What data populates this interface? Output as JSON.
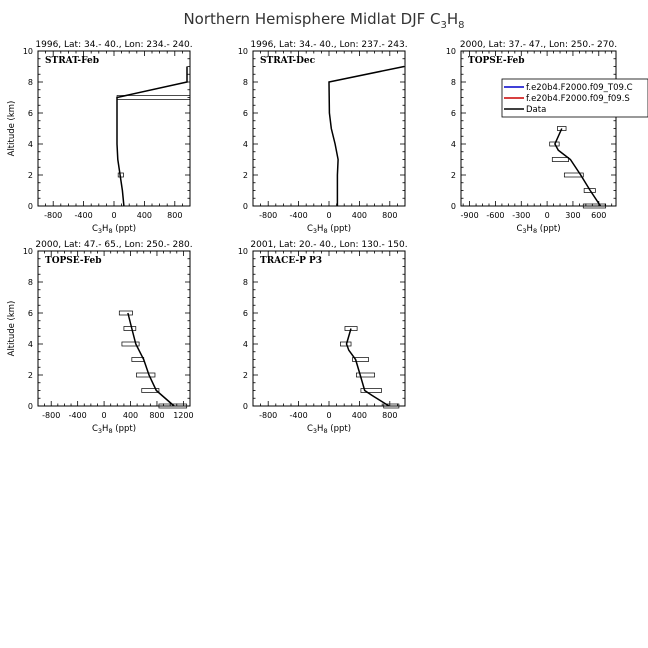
{
  "figure": {
    "title_main": "Northern Hemisphere Midlat DJF C",
    "title_sub": "3",
    "title_tail": "H",
    "title_sub2": "8"
  },
  "legend": {
    "entries": [
      {
        "label": "f.e20b4.F2000.f09_T09.C",
        "color": "#0000cc"
      },
      {
        "label": "f.e20b4.F2000.f09_f09.S",
        "color": "#cc0000"
      },
      {
        "label": "Data",
        "color": "#000000"
      }
    ]
  },
  "chart_data": [
    {
      "type": "line",
      "header": "1996, Lat: 34.- 40., Lon: 234.- 240.",
      "label": "STRAT-Feb",
      "xlabel": "C3H8 (ppt)",
      "ylabel": "Altitude (km)",
      "xlim": [
        -1000,
        1000
      ],
      "ylim": [
        0,
        10
      ],
      "xticks": [
        -800,
        -400,
        0,
        400,
        800
      ],
      "yticks": [
        0,
        2,
        4,
        6,
        8,
        10
      ],
      "series": [
        {
          "name": "Data",
          "x": [
            130,
            110,
            80,
            50,
            40,
            40,
            40,
            960,
            960,
            960
          ],
          "y": [
            0,
            1,
            2,
            3,
            4,
            5,
            7,
            8,
            8.5,
            9
          ]
        }
      ],
      "error_bars": [
        {
          "y": 7,
          "xmin": 40,
          "xmax": 1040
        },
        {
          "y": 2,
          "xmin": 55,
          "xmax": 125
        }
      ]
    },
    {
      "type": "line",
      "header": "1996, Lat: 34.- 40., Lon: 237.- 243.",
      "label": "STRAT-Dec",
      "xlabel": "C3H8 (ppt)",
      "ylabel": "",
      "xlim": [
        -1000,
        1000
      ],
      "ylim": [
        0,
        10
      ],
      "xticks": [
        -800,
        -400,
        0,
        400,
        800
      ],
      "yticks": [
        0,
        2,
        4,
        6,
        8,
        10
      ],
      "series": [
        {
          "name": "Data",
          "x": [
            110,
            110,
            110,
            120,
            80,
            30,
            5,
            0,
            990
          ],
          "y": [
            0,
            1,
            2,
            3,
            4,
            5,
            6,
            8,
            9
          ]
        }
      ],
      "error_bars": []
    },
    {
      "type": "line",
      "header": "2000, Lat: 37.- 47., Lon: 250.- 270.",
      "label": "TOPSE-Feb",
      "xlabel": "C3H8 (ppt)",
      "ylabel": "",
      "xlim": [
        -1000,
        800
      ],
      "ylim": [
        0,
        10
      ],
      "xticks": [
        -900,
        -600,
        -300,
        0,
        300,
        600
      ],
      "yticks": [
        0,
        2,
        4,
        6,
        8,
        10
      ],
      "series": [
        {
          "name": "Data",
          "x": [
            620,
            500,
            390,
            270,
            130,
            90,
            170
          ],
          "y": [
            0,
            1,
            2,
            3,
            3.6,
            4,
            5
          ]
        }
      ],
      "error_bars": [
        {
          "y": 5,
          "xmin": 120,
          "xmax": 220
        },
        {
          "y": 4,
          "xmin": 30,
          "xmax": 140
        },
        {
          "y": 3,
          "xmin": 60,
          "xmax": 250
        },
        {
          "y": 2,
          "xmin": 200,
          "xmax": 420
        },
        {
          "y": 1,
          "xmin": 430,
          "xmax": 560
        },
        {
          "y": 0,
          "xmin": 420,
          "xmax": 680
        }
      ]
    },
    {
      "type": "line",
      "header": "2000, Lat: 47.- 65., Lon: 250.- 280.",
      "label": "TOPSE-Feb",
      "xlabel": "C3H8 (ppt)",
      "ylabel": "Altitude (km)",
      "xlim": [
        -1000,
        1300
      ],
      "ylim": [
        0,
        10
      ],
      "xticks": [
        -800,
        -400,
        0,
        400,
        800,
        1200
      ],
      "yticks": [
        0,
        2,
        4,
        6,
        8,
        10
      ],
      "series": [
        {
          "name": "Data",
          "x": [
            1060,
            790,
            680,
            600,
            480,
            420,
            360
          ],
          "y": [
            0,
            1,
            2,
            3,
            4,
            5,
            6
          ]
        }
      ],
      "error_bars": [
        {
          "y": 6,
          "xmin": 230,
          "xmax": 430
        },
        {
          "y": 5,
          "xmin": 300,
          "xmax": 480
        },
        {
          "y": 4,
          "xmin": 270,
          "xmax": 530
        },
        {
          "y": 3,
          "xmin": 420,
          "xmax": 600
        },
        {
          "y": 2,
          "xmin": 490,
          "xmax": 770
        },
        {
          "y": 1,
          "xmin": 570,
          "xmax": 830
        },
        {
          "y": 0,
          "xmin": 830,
          "xmax": 1250
        }
      ]
    },
    {
      "type": "line",
      "header": "2001, Lat: 20.- 40., Lon: 130.- 150.",
      "label": "TRACE-P P3",
      "xlabel": "C3H8 (ppt)",
      "ylabel": "",
      "xlim": [
        -1000,
        1000
      ],
      "ylim": [
        0,
        10
      ],
      "xticks": [
        -800,
        -400,
        0,
        400,
        800
      ],
      "yticks": [
        0,
        2,
        4,
        6,
        8,
        10
      ],
      "series": [
        {
          "name": "Data",
          "x": [
            790,
            560,
            470,
            410,
            350,
            260,
            230,
            290
          ],
          "y": [
            0,
            0.7,
            1,
            2,
            3,
            3.6,
            4,
            5
          ]
        }
      ],
      "error_bars": [
        {
          "y": 5,
          "xmin": 210,
          "xmax": 370
        },
        {
          "y": 4,
          "xmin": 150,
          "xmax": 290
        },
        {
          "y": 3,
          "xmin": 310,
          "xmax": 520
        },
        {
          "y": 2,
          "xmin": 360,
          "xmax": 600
        },
        {
          "y": 1,
          "xmin": 420,
          "xmax": 690
        },
        {
          "y": 0,
          "xmin": 720,
          "xmax": 920
        }
      ]
    }
  ]
}
